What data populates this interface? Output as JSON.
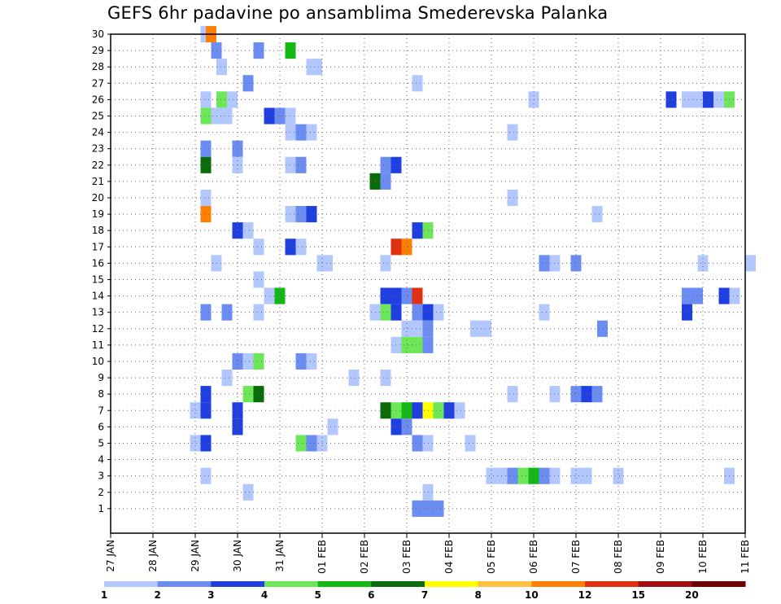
{
  "chart_data": {
    "type": "heatmap",
    "title": "GEFS 6hr padavine po ansamblima Smederevska Palanka",
    "x_tick_labels": [
      "27 JAN",
      "28 JAN",
      "29 JAN",
      "30 JAN",
      "31 JAN",
      "01 FEB",
      "02 FEB",
      "03 FEB",
      "04 FEB",
      "05 FEB",
      "06 FEB",
      "07 FEB",
      "08 FEB",
      "09 FEB",
      "10 FEB",
      "11 FEB"
    ],
    "x_range_steps": [
      0,
      60
    ],
    "y_tick_labels": [
      "1",
      "2",
      "3",
      "4",
      "5",
      "6",
      "7",
      "8",
      "9",
      "10",
      "11",
      "12",
      "13",
      "14",
      "15",
      "16",
      "17",
      "18",
      "19",
      "20",
      "21",
      "22",
      "23",
      "24",
      "25",
      "26",
      "27",
      "28",
      "29",
      "30"
    ],
    "y_range_members": [
      0,
      30
    ],
    "grid": true,
    "colorbar": {
      "labels": [
        "1",
        "2",
        "3",
        "4",
        "5",
        "6",
        "7",
        "8",
        "10",
        "12",
        "15",
        "20"
      ],
      "colors": [
        "#b3c7ff",
        "#6b8cf0",
        "#1f3fe0",
        "#6ee65a",
        "#14b814",
        "#096b09",
        "#ffff00",
        "#ffc040",
        "#ff8000",
        "#e03010",
        "#a01010",
        "#700000"
      ]
    },
    "cells": [
      [
        30,
        8.5,
        1
      ],
      [
        30,
        9,
        9
      ],
      [
        29,
        9.5,
        2
      ],
      [
        29,
        13.5,
        2
      ],
      [
        29,
        16.5,
        5
      ],
      [
        28,
        10,
        1
      ],
      [
        28,
        18.5,
        1
      ],
      [
        28,
        19,
        1
      ],
      [
        27,
        12.5,
        2
      ],
      [
        27,
        28.5,
        1
      ],
      [
        26,
        8.5,
        1
      ],
      [
        26,
        10,
        4
      ],
      [
        26,
        11,
        1
      ],
      [
        26,
        39.5,
        1
      ],
      [
        26,
        52.5,
        3
      ],
      [
        26,
        54,
        1
      ],
      [
        26,
        55,
        1
      ],
      [
        26,
        56,
        3
      ],
      [
        26,
        57,
        1
      ],
      [
        26,
        58,
        4
      ],
      [
        25,
        8.5,
        4
      ],
      [
        25,
        9.5,
        1
      ],
      [
        25,
        10.5,
        1
      ],
      [
        25,
        14.5,
        3
      ],
      [
        25,
        15.5,
        2
      ],
      [
        25,
        16.5,
        1
      ],
      [
        24,
        16.5,
        1
      ],
      [
        24,
        17.5,
        2
      ],
      [
        24,
        18.5,
        1
      ],
      [
        24,
        37.5,
        1
      ],
      [
        23,
        8.5,
        2
      ],
      [
        23,
        11.5,
        2
      ],
      [
        22,
        8.5,
        6
      ],
      [
        22,
        11.5,
        1
      ],
      [
        22,
        16.5,
        1
      ],
      [
        22,
        17.5,
        2
      ],
      [
        22,
        25.5,
        2
      ],
      [
        22,
        26.5,
        3
      ],
      [
        21,
        24.5,
        6
      ],
      [
        21,
        25.5,
        2
      ],
      [
        20,
        8.5,
        1
      ],
      [
        20,
        37.5,
        1
      ],
      [
        19,
        8.5,
        9
      ],
      [
        19,
        16.5,
        1
      ],
      [
        19,
        17.5,
        2
      ],
      [
        19,
        18.5,
        3
      ],
      [
        19,
        45.5,
        1
      ],
      [
        18,
        11.5,
        3
      ],
      [
        18,
        12.5,
        1
      ],
      [
        18,
        28.5,
        3
      ],
      [
        18,
        29.5,
        4
      ],
      [
        17,
        13.5,
        1
      ],
      [
        17,
        16.5,
        3
      ],
      [
        17,
        17.5,
        1
      ],
      [
        17,
        26.5,
        10
      ],
      [
        17,
        27.5,
        9
      ],
      [
        16,
        9.5,
        1
      ],
      [
        16,
        19.5,
        1
      ],
      [
        16,
        20,
        1
      ],
      [
        16,
        25.5,
        1
      ],
      [
        16,
        40.5,
        2
      ],
      [
        16,
        41.5,
        1
      ],
      [
        16,
        43.5,
        2
      ],
      [
        16,
        55.5,
        1
      ],
      [
        16,
        60,
        1
      ],
      [
        15,
        13.5,
        1
      ],
      [
        14,
        14.5,
        1
      ],
      [
        14,
        15.5,
        5
      ],
      [
        14,
        25.5,
        3
      ],
      [
        14,
        26.5,
        3
      ],
      [
        14,
        27.5,
        2
      ],
      [
        14,
        28.5,
        10
      ],
      [
        14,
        54,
        2
      ],
      [
        14,
        55,
        2
      ],
      [
        14,
        57.5,
        3
      ],
      [
        14,
        58.5,
        1
      ],
      [
        13,
        8.5,
        2
      ],
      [
        13,
        10.5,
        2
      ],
      [
        13,
        13.5,
        1
      ],
      [
        13,
        24.5,
        1
      ],
      [
        13,
        25.5,
        4
      ],
      [
        13,
        26.5,
        3
      ],
      [
        13,
        28.5,
        2
      ],
      [
        13,
        29.5,
        3
      ],
      [
        13,
        30.5,
        1
      ],
      [
        13,
        40.5,
        1
      ],
      [
        13,
        54,
        3
      ],
      [
        12,
        27.5,
        1
      ],
      [
        12,
        28.5,
        1
      ],
      [
        12,
        29.5,
        2
      ],
      [
        12,
        34,
        1
      ],
      [
        12,
        35,
        1
      ],
      [
        12,
        46,
        2
      ],
      [
        11,
        26.5,
        1
      ],
      [
        11,
        27.5,
        4
      ],
      [
        11,
        28.5,
        4
      ],
      [
        11,
        29.5,
        2
      ],
      [
        10,
        11.5,
        2
      ],
      [
        10,
        12.5,
        1
      ],
      [
        10,
        13.5,
        4
      ],
      [
        10,
        17.5,
        2
      ],
      [
        10,
        18.5,
        1
      ],
      [
        9,
        10.5,
        1
      ],
      [
        9,
        22.5,
        1
      ],
      [
        9,
        25.5,
        1
      ],
      [
        8,
        8.5,
        3
      ],
      [
        8,
        12.5,
        4
      ],
      [
        8,
        13.5,
        6
      ],
      [
        8,
        37.5,
        1
      ],
      [
        8,
        41.5,
        1
      ],
      [
        8,
        43.5,
        2
      ],
      [
        8,
        44.5,
        3
      ],
      [
        8,
        45.5,
        2
      ],
      [
        7,
        7.5,
        1
      ],
      [
        7,
        8.5,
        3
      ],
      [
        7,
        11.5,
        3
      ],
      [
        7,
        25.5,
        6
      ],
      [
        7,
        26.5,
        4
      ],
      [
        7,
        27.5,
        5
      ],
      [
        7,
        28.5,
        3
      ],
      [
        7,
        29.5,
        7
      ],
      [
        7,
        30.5,
        4
      ],
      [
        7,
        31.5,
        3
      ],
      [
        7,
        32.5,
        1
      ],
      [
        6,
        11.5,
        3
      ],
      [
        6,
        20.5,
        1
      ],
      [
        6,
        26.5,
        3
      ],
      [
        6,
        27.5,
        2
      ],
      [
        5,
        7.5,
        1
      ],
      [
        5,
        8.5,
        3
      ],
      [
        5,
        17.5,
        4
      ],
      [
        5,
        18.5,
        2
      ],
      [
        5,
        19.5,
        1
      ],
      [
        5,
        28.5,
        2
      ],
      [
        5,
        29.5,
        1
      ],
      [
        5,
        33.5,
        1
      ],
      [
        3,
        8.5,
        1
      ],
      [
        3,
        35.5,
        1
      ],
      [
        3,
        36.5,
        1
      ],
      [
        3,
        37.5,
        2
      ],
      [
        3,
        38.5,
        4
      ],
      [
        3,
        39.5,
        5
      ],
      [
        3,
        40.5,
        2
      ],
      [
        3,
        41.5,
        1
      ],
      [
        3,
        43.5,
        1
      ],
      [
        3,
        44.5,
        1
      ],
      [
        3,
        47.5,
        1
      ],
      [
        3,
        58,
        1
      ],
      [
        2,
        12.5,
        1
      ],
      [
        2,
        29.5,
        1
      ],
      [
        1,
        28.5,
        2
      ],
      [
        1,
        29.5,
        2
      ],
      [
        1,
        30.5,
        2
      ]
    ]
  }
}
